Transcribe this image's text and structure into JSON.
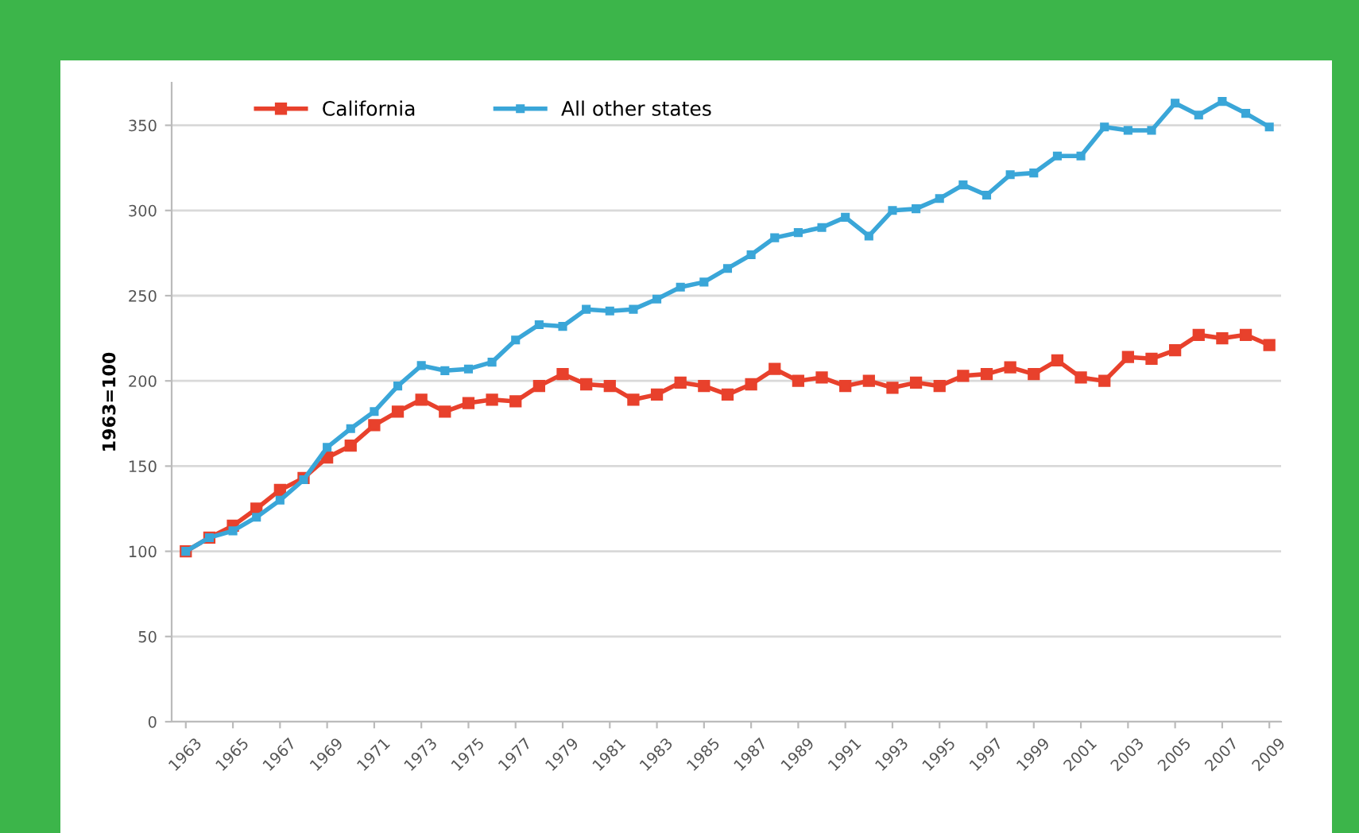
{
  "chart_data": {
    "type": "line",
    "ylabel": "1963=100",
    "x": [
      1963,
      1964,
      1965,
      1966,
      1967,
      1968,
      1969,
      1970,
      1971,
      1972,
      1973,
      1974,
      1975,
      1976,
      1977,
      1978,
      1979,
      1980,
      1981,
      1982,
      1983,
      1984,
      1985,
      1986,
      1987,
      1988,
      1989,
      1990,
      1991,
      1992,
      1993,
      1994,
      1995,
      1996,
      1997,
      1998,
      1999,
      2000,
      2001,
      2002,
      2003,
      2004,
      2005,
      2006,
      2007,
      2008,
      2009
    ],
    "series": [
      {
        "name": "California",
        "color": "#e8412c",
        "values": [
          100,
          108,
          115,
          125,
          136,
          143,
          155,
          162,
          174,
          182,
          189,
          182,
          187,
          189,
          188,
          197,
          204,
          198,
          197,
          189,
          192,
          199,
          197,
          192,
          198,
          207,
          200,
          202,
          197,
          200,
          196,
          199,
          197,
          203,
          204,
          208,
          204,
          212,
          202,
          200,
          214,
          213,
          218,
          227,
          225,
          227,
          221
        ]
      },
      {
        "name": "All other states",
        "color": "#3aa6d8",
        "values": [
          100,
          108,
          112,
          120,
          130,
          142,
          161,
          172,
          182,
          197,
          209,
          206,
          207,
          211,
          224,
          233,
          232,
          242,
          241,
          242,
          248,
          255,
          258,
          266,
          274,
          284,
          287,
          290,
          296,
          285,
          300,
          301,
          307,
          315,
          309,
          321,
          322,
          332,
          332,
          349,
          347,
          347,
          363,
          356,
          364,
          357,
          349
        ]
      }
    ],
    "xlim": [
      1962.4,
      2009.5
    ],
    "ylim": [
      0,
      375
    ],
    "xticks": [
      1963,
      1965,
      1967,
      1969,
      1971,
      1973,
      1975,
      1977,
      1979,
      1981,
      1983,
      1985,
      1987,
      1989,
      1991,
      1993,
      1995,
      1997,
      1999,
      2001,
      2003,
      2005,
      2007,
      2009
    ],
    "yticks": [
      0,
      50,
      100,
      150,
      200,
      250,
      300,
      350
    ],
    "grid": "y",
    "legend": "top left",
    "marker": "square",
    "line_style": "solid"
  }
}
